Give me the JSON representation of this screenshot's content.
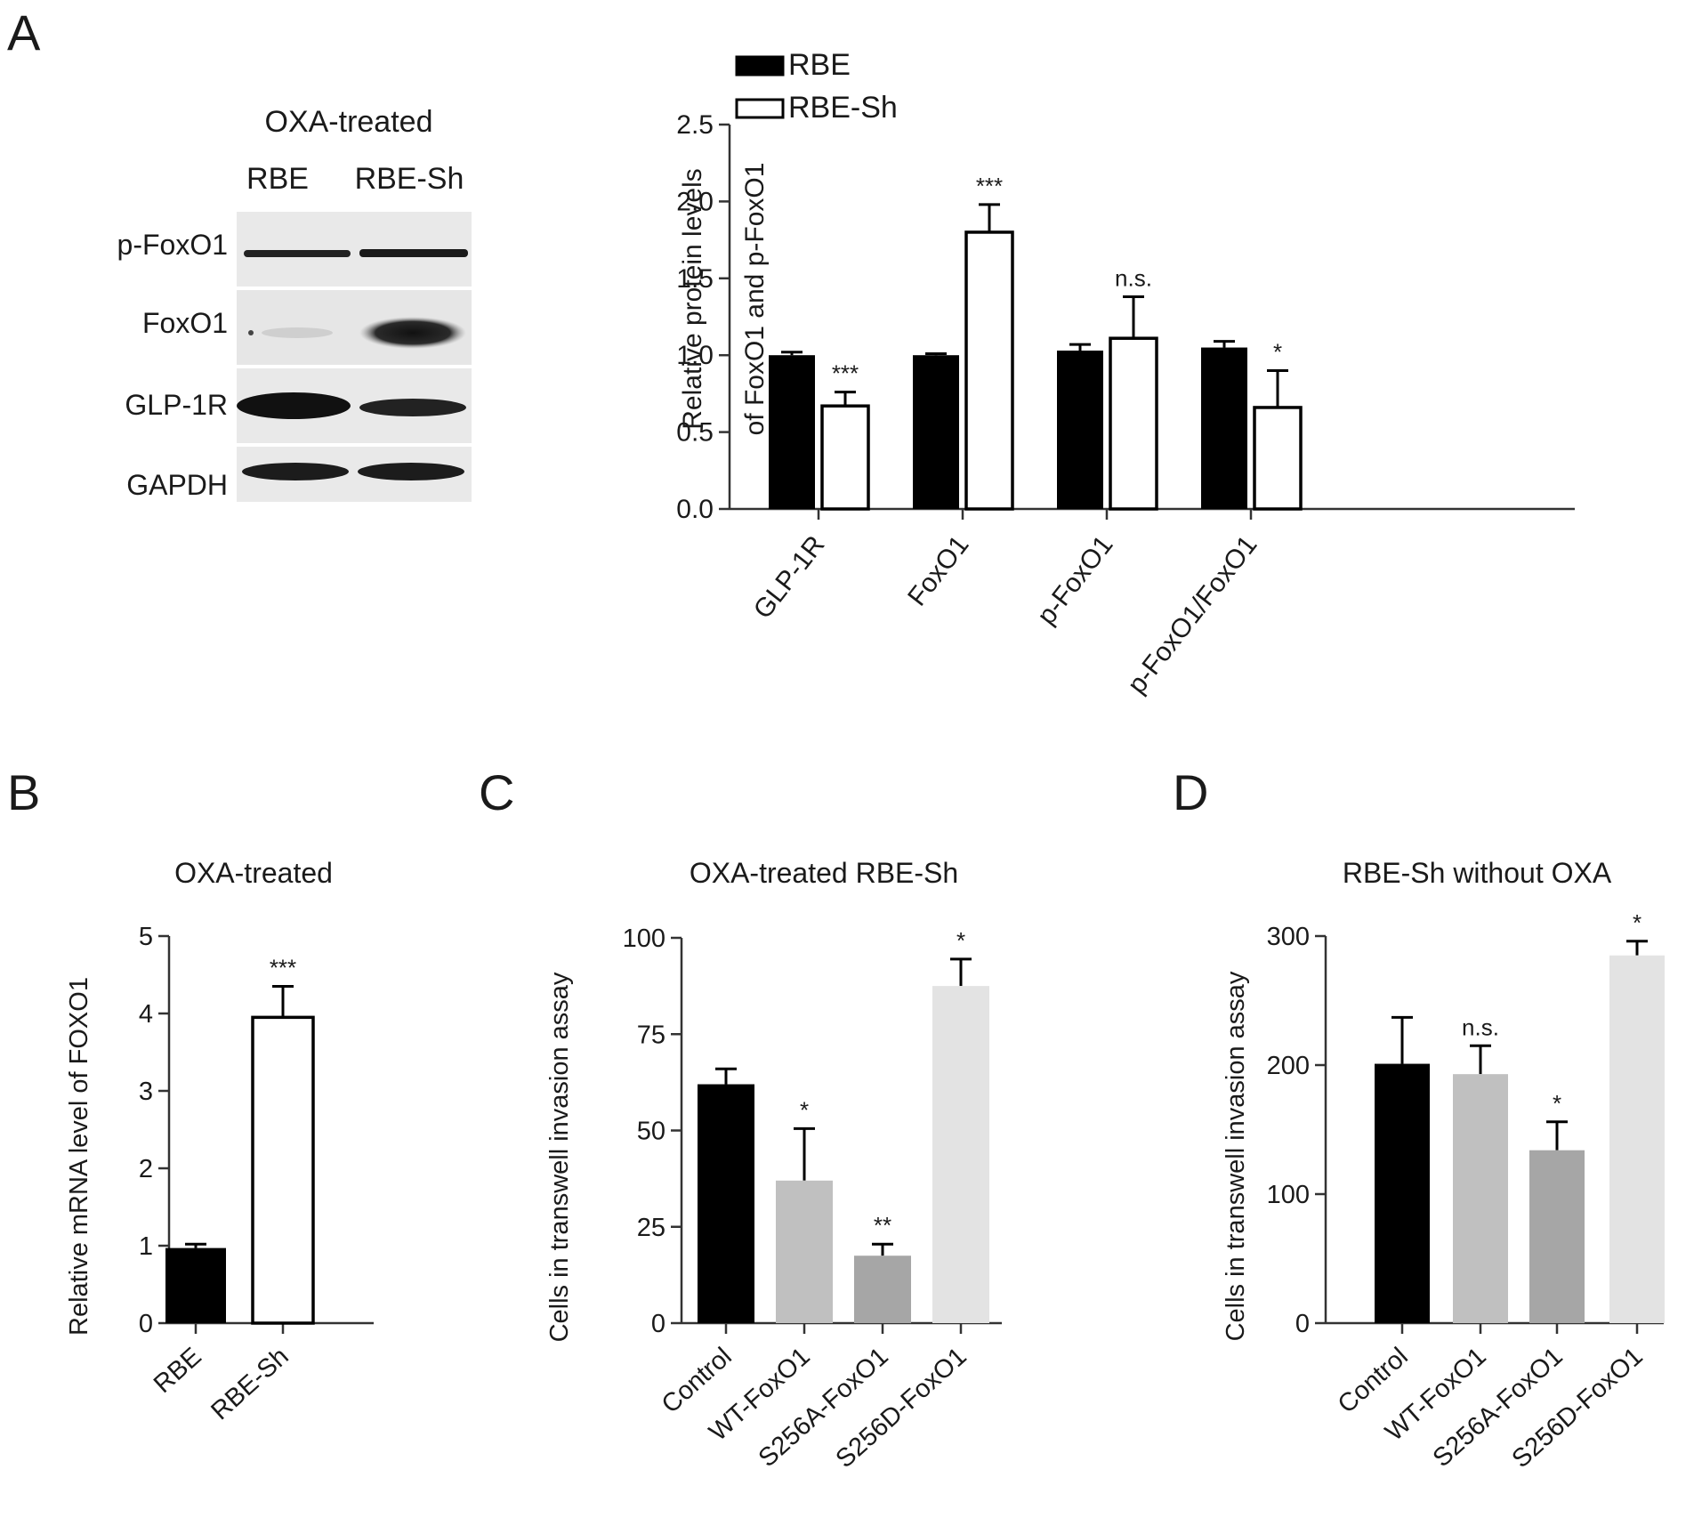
{
  "panels": {
    "a": "A",
    "b": "B",
    "c": "C",
    "d": "D"
  },
  "blot": {
    "title": "OXA-treated",
    "lanes": [
      "RBE",
      "RBE-Sh"
    ],
    "rows": [
      {
        "label": "p-FoxO1"
      },
      {
        "label": "FoxO1"
      },
      {
        "label": "GLP-1R"
      },
      {
        "label": "GAPDH"
      }
    ]
  },
  "chart_data": [
    {
      "id": "A",
      "type": "bar",
      "title": "",
      "ylabel": [
        "Relative protein levels",
        "of FoxO1 and p-FoxO1"
      ],
      "ylim": [
        0,
        2.5
      ],
      "yticks": [
        "0.0",
        "0.5",
        "1.0",
        "1.5",
        "2.0",
        "2.5"
      ],
      "categories": [
        "GLP-1R",
        "FoxO1",
        "p-FoxO1",
        "p-FoxO1/FoxO1"
      ],
      "legend_position": "top",
      "series": [
        {
          "name": "RBE",
          "color": "#000000",
          "fill": "#000000",
          "values": [
            1.0,
            1.0,
            1.03,
            1.05
          ],
          "errors": [
            0.02,
            0.01,
            0.04,
            0.04
          ]
        },
        {
          "name": "RBE-Sh",
          "color": "#000000",
          "fill": "#ffffff",
          "values": [
            0.67,
            1.8,
            1.11,
            0.66
          ],
          "errors": [
            0.09,
            0.18,
            0.27,
            0.24
          ]
        }
      ],
      "annotations": [
        {
          "category": 0,
          "series": 1,
          "text": "***"
        },
        {
          "category": 1,
          "series": 1,
          "text": "***"
        },
        {
          "category": 2,
          "series": 1,
          "text": "n.s."
        },
        {
          "category": 3,
          "series": 1,
          "text": "*"
        }
      ]
    },
    {
      "id": "B",
      "type": "bar",
      "title": "OXA-treated",
      "ylabel": [
        "Relative mRNA level of FOXO1"
      ],
      "ylim": [
        0,
        5
      ],
      "yticks": [
        "0",
        "1",
        "2",
        "3",
        "4",
        "5"
      ],
      "categories": [
        "RBE",
        "RBE-Sh"
      ],
      "series": [
        {
          "values": [
            0.97,
            3.95
          ],
          "errors": [
            0.05,
            0.4
          ],
          "fills": [
            "#000000",
            "#ffffff"
          ]
        }
      ],
      "annotations": [
        {
          "category": 1,
          "text": "***"
        }
      ]
    },
    {
      "id": "C",
      "type": "bar",
      "title": "OXA-treated RBE-Sh",
      "ylabel": [
        "Cells in transwell invasion assay"
      ],
      "ylim": [
        0,
        100
      ],
      "yticks": [
        "0",
        "25",
        "50",
        "75",
        "100"
      ],
      "categories": [
        "Control",
        "WT-FoxO1",
        "S256A-FoxO1",
        "S256D-FoxO1"
      ],
      "series": [
        {
          "values": [
            62,
            37,
            17.5,
            87.5
          ],
          "errors": [
            4,
            13.5,
            3,
            7
          ],
          "fills": [
            "#000000",
            "#c0c0c0",
            "#a6a6a6",
            "#e3e3e3"
          ]
        }
      ],
      "annotations": [
        {
          "category": 1,
          "text": "*"
        },
        {
          "category": 2,
          "text": "**"
        },
        {
          "category": 3,
          "text": "*"
        }
      ]
    },
    {
      "id": "D",
      "type": "bar",
      "title": "RBE-Sh without OXA",
      "ylabel": [
        "Cells in transwell invasion assay"
      ],
      "ylim": [
        0,
        300
      ],
      "yticks": [
        "0",
        "100",
        "200",
        "300"
      ],
      "categories": [
        "Control",
        "WT-FoxO1",
        "S256A-FoxO1",
        "S256D-FoxO1"
      ],
      "series": [
        {
          "values": [
            201,
            193,
            134,
            285
          ],
          "errors": [
            36,
            22,
            22,
            11
          ],
          "fills": [
            "#000000",
            "#c0c0c0",
            "#a6a6a6",
            "#e3e3e3"
          ]
        }
      ],
      "annotations": [
        {
          "category": 1,
          "text": "n.s."
        },
        {
          "category": 2,
          "text": "*"
        },
        {
          "category": 3,
          "text": "*"
        }
      ]
    }
  ]
}
